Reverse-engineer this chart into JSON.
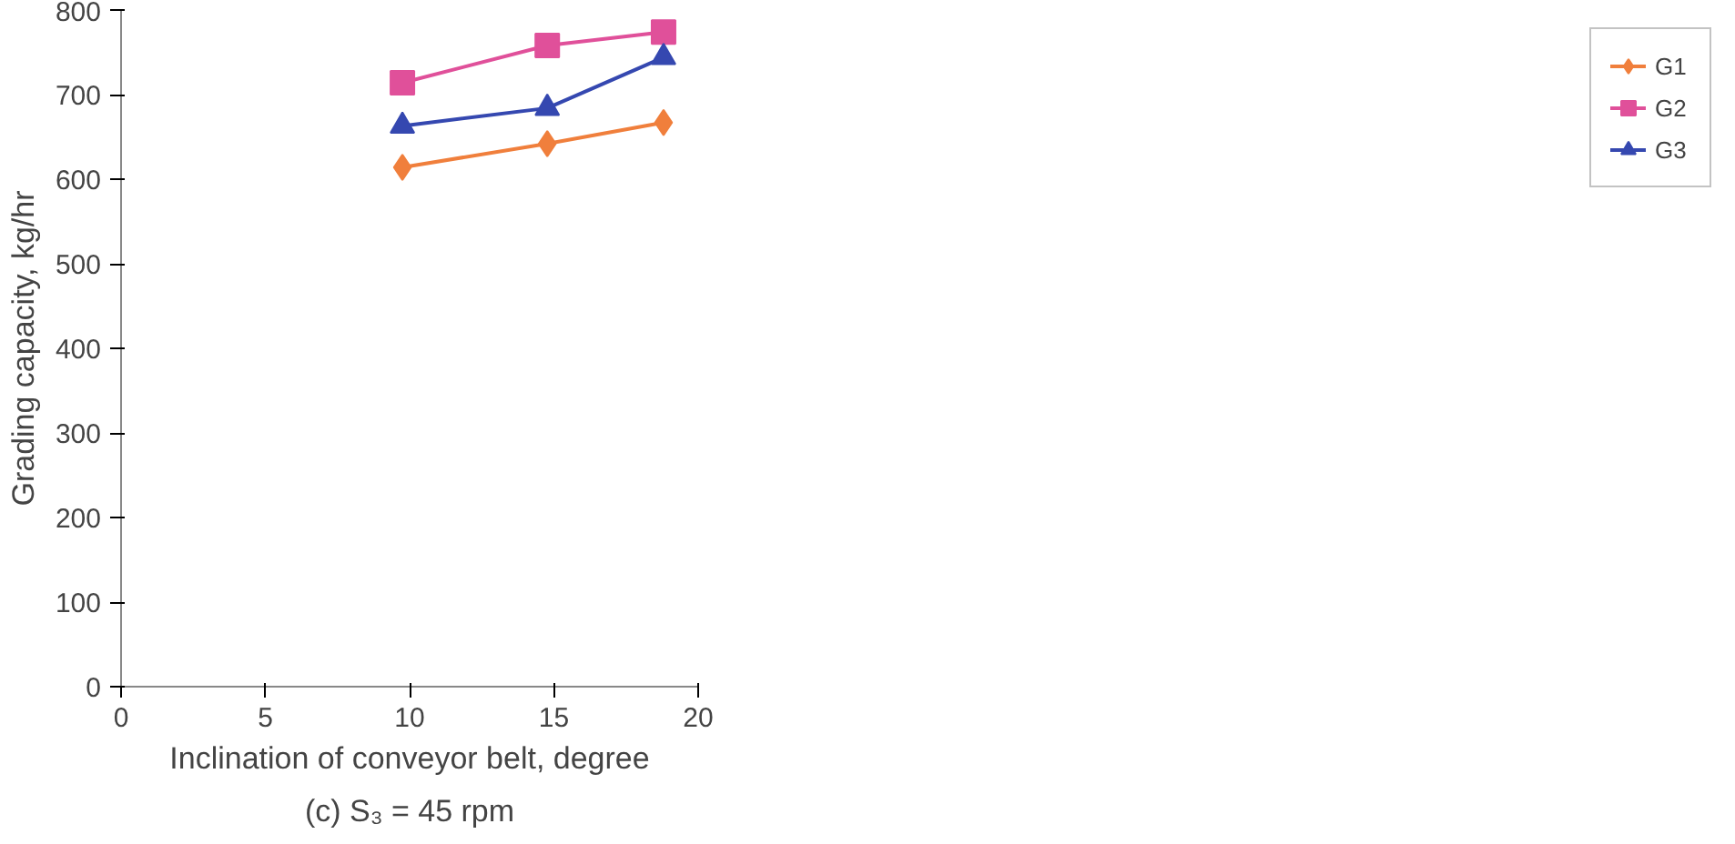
{
  "chart_data": {
    "type": "line",
    "xlabel": "Inclination of conveyor belt, degree",
    "ylabel": "Grading capacity, kg/hr",
    "annotations": [
      "(c) S₃ = 45 rpm"
    ],
    "x": [
      9.75,
      14.77,
      18.8
    ],
    "series": [
      {
        "name": "G1",
        "color": "#f07f3c",
        "marker": "diamond",
        "values": [
          614,
          642,
          667
        ]
      },
      {
        "name": "G2",
        "color": "#e0509a",
        "marker": "square",
        "values": [
          714,
          758,
          774
        ]
      },
      {
        "name": "G3",
        "color": "#3548b0",
        "marker": "triangle",
        "values": [
          663,
          684,
          744
        ]
      }
    ],
    "xlim": [
      0,
      20
    ],
    "xticks": [
      0,
      5,
      10,
      15,
      20
    ],
    "ylim": [
      0,
      800
    ],
    "yticks": [
      0,
      100,
      200,
      300,
      400,
      500,
      600,
      700,
      800
    ],
    "grid": false,
    "legend": "right",
    "line_style": "solid"
  }
}
